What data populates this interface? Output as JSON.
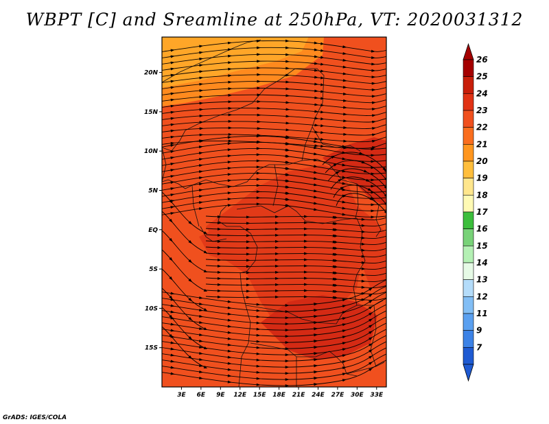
{
  "title": "WBPT [C] and Sreamline at 250hPa, VT: 2020031312",
  "credit": "GrADS: IGES/COLA",
  "map": {
    "lat_range": [
      -20,
      24.5
    ],
    "lon_range": [
      0,
      34.5
    ],
    "lat_ticks": [
      {
        "value": 20,
        "label": "20N"
      },
      {
        "value": 15,
        "label": "15N"
      },
      {
        "value": 10,
        "label": "10N"
      },
      {
        "value": 5,
        "label": "5N"
      },
      {
        "value": 0,
        "label": "EQ"
      },
      {
        "value": -5,
        "label": "5S"
      },
      {
        "value": -10,
        "label": "10S"
      },
      {
        "value": -15,
        "label": "15S"
      }
    ],
    "lon_ticks": [
      {
        "value": 3,
        "label": "3E"
      },
      {
        "value": 6,
        "label": "6E"
      },
      {
        "value": 9,
        "label": "9E"
      },
      {
        "value": 12,
        "label": "12E"
      },
      {
        "value": 15,
        "label": "15E"
      },
      {
        "value": 18,
        "label": "18E"
      },
      {
        "value": 21,
        "label": "21E"
      },
      {
        "value": 24,
        "label": "24E"
      },
      {
        "value": 27,
        "label": "27E"
      },
      {
        "value": 30,
        "label": "30E"
      },
      {
        "value": 33,
        "label": "33E"
      }
    ],
    "field_colors": {
      "background": "#f0501e",
      "warm": "#e23a18",
      "hot": "#d42a14",
      "cool": "#ff8a1e",
      "cooler": "#ffa628"
    }
  },
  "colorbar": {
    "labels": [
      "26",
      "25",
      "24",
      "23",
      "22",
      "21",
      "20",
      "19",
      "18",
      "17",
      "16",
      "15",
      "14",
      "13",
      "12",
      "11",
      "9",
      "7"
    ],
    "colors": [
      "#a50000",
      "#c81e0a",
      "#e13214",
      "#f0501e",
      "#fa6e1e",
      "#ff961e",
      "#ffbe3c",
      "#ffe68c",
      "#fffab4",
      "#3cbe3c",
      "#78d278",
      "#b4f0b4",
      "#e6fae6",
      "#b4dcfa",
      "#82bef5",
      "#5aa0f0",
      "#3c82e6",
      "#1e5ad2"
    ],
    "top_color": "#a50000",
    "bottom_color": "#1e5ad2"
  }
}
